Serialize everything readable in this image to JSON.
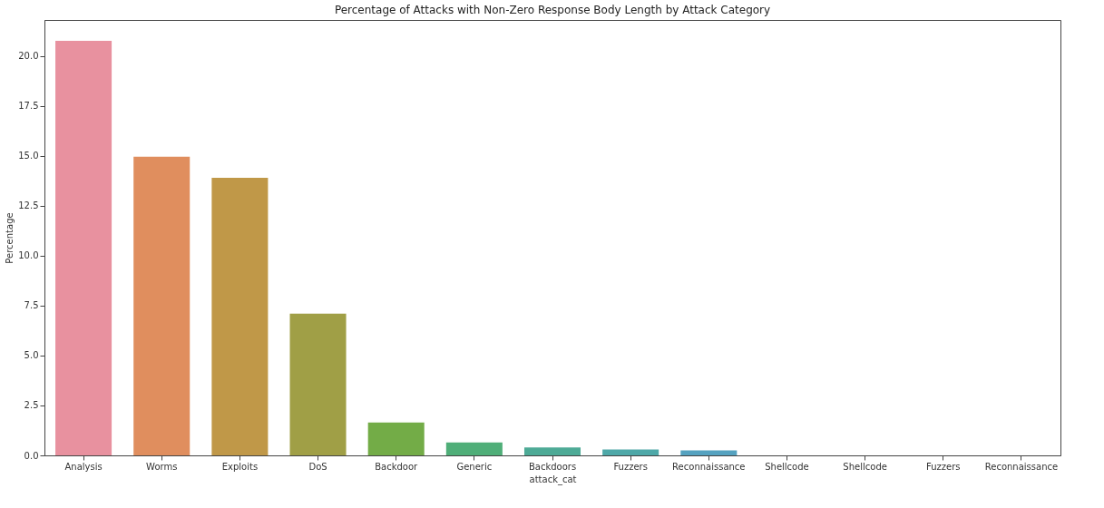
{
  "chart_data": {
    "type": "bar",
    "title": "Percentage of Attacks with Non-Zero Response Body Length by Attack Category",
    "xlabel": "attack_cat",
    "ylabel": "Percentage",
    "categories": [
      "Analysis",
      "Worms",
      "Exploits",
      "DoS",
      "Backdoor",
      "Generic",
      "Backdoors",
      "Fuzzers",
      "Reconnaissance",
      "Shellcode",
      "Shellcode",
      "Fuzzers",
      "Reconnaissance"
    ],
    "values": [
      20.75,
      14.95,
      13.9,
      7.1,
      1.65,
      0.65,
      0.4,
      0.3,
      0.25,
      0,
      0,
      0,
      0
    ],
    "colors": [
      "#e8919f",
      "#e08e5e",
      "#c09848",
      "#a09f46",
      "#73ac47",
      "#4fae78",
      "#4daa96",
      "#4ea8a8",
      "#55a2c0",
      "#7d9de0",
      "#a791e2",
      "#d386d8",
      "#e385b6"
    ],
    "ylim": [
      0,
      21.8
    ],
    "yticks": [
      {
        "value": 0,
        "label": "0.0"
      },
      2.5,
      {
        "value": 5,
        "label": "5.0"
      },
      7.5,
      {
        "value": 10,
        "label": "10.0"
      },
      12.5,
      {
        "value": 15,
        "label": "15.0"
      },
      17.5,
      {
        "value": 20,
        "label": "20.0"
      }
    ],
    "grid": false
  }
}
